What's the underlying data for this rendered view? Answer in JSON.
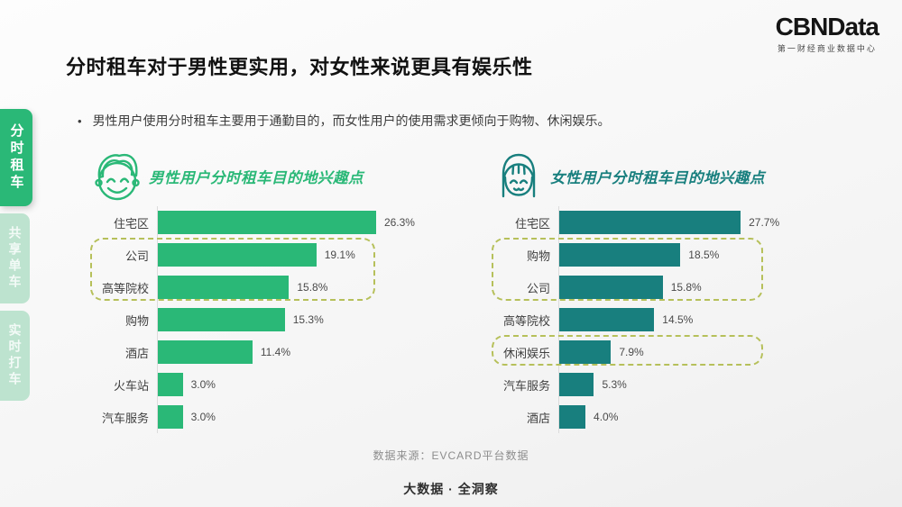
{
  "logo": {
    "name": "CBNData",
    "subtitle": "第一财经商业数据中心"
  },
  "header": {
    "title": "分时租车对于男性更实用，对女性来说更具有娱乐性",
    "bullet_dot": "•",
    "bullet": "男性用户使用分时租车主要用于通勤目的，而女性用户的使用需求更倾向于购物、休闲娱乐。"
  },
  "sidebar": {
    "tabs": [
      {
        "label": "分时租车",
        "active": true
      },
      {
        "label": "共享单车",
        "active": false
      },
      {
        "label": "实时打车",
        "active": false
      }
    ]
  },
  "footer": {
    "source": "数据来源：EVCARD平台数据",
    "slogan": "大数据 · 全洞察"
  },
  "colors": {
    "male_accent": "#2ab877",
    "female_accent": "#187f7e",
    "highlight_dash": "#b6c05a",
    "tab_active_bg": "#2ab877",
    "tab_inactive_bg": "#bde3cf"
  },
  "chart_data": [
    {
      "type": "bar",
      "orientation": "horizontal",
      "title": "男性用户分时租车目的地兴趣点",
      "avatar": "male",
      "unit": "%",
      "categories": [
        "住宅区",
        "公司",
        "高等院校",
        "购物",
        "酒店",
        "火车站",
        "汽车服务"
      ],
      "values": [
        26.3,
        19.1,
        15.8,
        15.3,
        11.4,
        3.0,
        3.0
      ],
      "value_labels": [
        "26.3%",
        "19.1%",
        "15.8%",
        "15.3%",
        "11.4%",
        "3.0%",
        "3.0%"
      ],
      "bar_color": "#2ab877",
      "xlim": [
        0,
        30
      ],
      "grid": false,
      "legend": false,
      "highlight_groups": [
        {
          "from": 1,
          "to": 2
        }
      ]
    },
    {
      "type": "bar",
      "orientation": "horizontal",
      "title": "女性用户分时租车目的地兴趣点",
      "avatar": "female",
      "unit": "%",
      "categories": [
        "住宅区",
        "购物",
        "公司",
        "高等院校",
        "休闲娱乐",
        "汽车服务",
        "酒店"
      ],
      "values": [
        27.7,
        18.5,
        15.8,
        14.5,
        7.9,
        5.3,
        4.0
      ],
      "value_labels": [
        "27.7%",
        "18.5%",
        "15.8%",
        "14.5%",
        "7.9%",
        "5.3%",
        "4.0%"
      ],
      "bar_color": "#187f7e",
      "xlim": [
        0,
        30
      ],
      "grid": false,
      "legend": false,
      "highlight_groups": [
        {
          "from": 1,
          "to": 2
        },
        {
          "from": 4,
          "to": 4
        }
      ]
    }
  ]
}
